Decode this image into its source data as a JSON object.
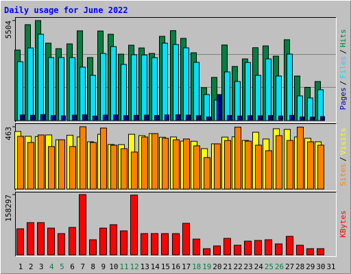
{
  "chart_data": [
    {
      "type": "bar",
      "title": "Daily usage for June 2022",
      "ylim": [
        0,
        5504
      ],
      "yticks": [
        5504
      ],
      "legend_separator": "/",
      "series": [
        {
          "name": "Pages",
          "color": "#0000a0",
          "values": [
            310,
            290,
            330,
            280,
            260,
            300,
            320,
            250,
            300,
            310,
            270,
            290,
            300,
            280,
            310,
            320,
            300,
            270,
            200,
            1433,
            280,
            250,
            270,
            260,
            280,
            250,
            290,
            200,
            190,
            220,
            null
          ]
        },
        {
          "name": "Files",
          "color": "#00e0ff",
          "values": [
            3242,
            3996,
            4750,
            3468,
            3470,
            3465,
            2941,
            2488,
            3695,
            4072,
            3091,
            3619,
            3610,
            3460,
            4260,
            4185,
            4000,
            3205,
            1433,
            1131,
            2677,
            2149,
            3200,
            2490,
            3393,
            2450,
            3657,
            1357,
            1244,
            1697,
            null
          ]
        },
        {
          "name": "Hits",
          "color": "#008040",
          "values": [
            3883,
            5278,
            5504,
            4260,
            3958,
            4222,
            4939,
            3468,
            4930,
            4750,
            3657,
            4147,
            3996,
            3695,
            4637,
            4950,
            4524,
            3732,
            1810,
            2375,
            4160,
            2978,
            3393,
            4010,
            4109,
            3544,
            4449,
            2451,
            1830,
            2149,
            null
          ]
        }
      ]
    },
    {
      "type": "bar",
      "ylim": [
        0,
        463
      ],
      "yticks": [
        463
      ],
      "legend_separator": "/",
      "series": [
        {
          "name": "Sites",
          "color": "#ff8000",
          "values": [
            392,
            346,
            402,
            316,
            366,
            316,
            463,
            346,
            453,
            326,
            300,
            275,
            387,
            412,
            377,
            366,
            372,
            321,
            234,
            336,
            361,
            460,
            356,
            326,
            285,
            397,
            361,
            460,
            351,
            326,
            null
          ]
        },
        {
          "name": "Visits",
          "color": "#ffff00",
          "values": [
            428,
            392,
            390,
            402,
            366,
            400,
            387,
            351,
            407,
            331,
            330,
            407,
            397,
            412,
            385,
            387,
            356,
            355,
            300,
            336,
            386,
            388,
            361,
            422,
            372,
            448,
            443,
            387,
            377,
            351,
            null
          ]
        }
      ]
    },
    {
      "type": "bar",
      "ylim": [
        0,
        158297
      ],
      "yticks": [
        158297
      ],
      "weekend_color": "#008040",
      "categories": [
        "1",
        "2",
        "3",
        "4",
        "5",
        "6",
        "7",
        "8",
        "9",
        "10",
        "11",
        "12",
        "13",
        "14",
        "15",
        "16",
        "17",
        "18",
        "19",
        "20",
        "21",
        "22",
        "23",
        "24",
        "25",
        "26",
        "27",
        "28",
        "29",
        "30",
        "31"
      ],
      "weekend": [
        false,
        false,
        false,
        true,
        true,
        false,
        false,
        false,
        false,
        false,
        true,
        true,
        false,
        false,
        false,
        false,
        false,
        true,
        true,
        false,
        false,
        false,
        false,
        false,
        true,
        true,
        false,
        false,
        false,
        false,
        false
      ],
      "series": [
        {
          "name": "KBytes",
          "color": "#ff0000",
          "values": [
            68362,
            84553,
            84600,
            70161,
            55769,
            71960,
            158297,
            39578,
            70200,
            79156,
            62965,
            156900,
            55769,
            55800,
            55700,
            55750,
            82754,
            41377,
            16191,
            23387,
            43176,
            25186,
            35980,
            37779,
            39578,
            28784,
            48573,
            25186,
            16191,
            16200,
            null
          ]
        }
      ]
    }
  ]
}
